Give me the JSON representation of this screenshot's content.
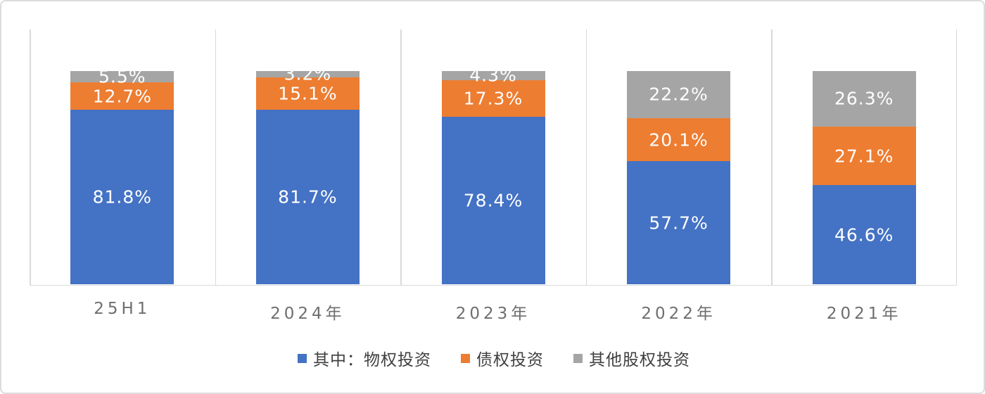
{
  "chart_data": {
    "type": "bar",
    "variant": "stacked-100-percent-column",
    "title": "",
    "xlabel": "",
    "ylabel": "",
    "categories": [
      "25H1",
      "2024年",
      "2023年",
      "2022年",
      "2021年"
    ],
    "series": [
      {
        "name": "其中：物权投资",
        "color": "#4472C4",
        "values": [
          81.8,
          81.7,
          78.4,
          57.7,
          46.6
        ],
        "labels": [
          "81.8%",
          "81.7%",
          "78.4%",
          "57.7%",
          "46.6%"
        ]
      },
      {
        "name": "债权投资",
        "color": "#ED7D31",
        "values": [
          12.7,
          15.1,
          17.3,
          20.1,
          27.1
        ],
        "labels": [
          "12.7%",
          "15.1%",
          "17.3%",
          "20.1%",
          "27.1%"
        ]
      },
      {
        "name": "其他股权投资",
        "color": "#A5A5A5",
        "values": [
          5.5,
          3.2,
          4.3,
          22.2,
          26.3
        ],
        "labels": [
          "5.5%",
          "3.2%",
          "4.3%",
          "22.2%",
          "26.3%"
        ]
      }
    ],
    "ylim": [
      0,
      120
    ],
    "grid": "vertical-category-separators",
    "legend_position": "bottom",
    "data_label_color": "#ffffff",
    "axis_label_color": "#6e6e6e",
    "legend_text_color": "#3f3f3f",
    "gridline_color": "#d9d9d9",
    "frame_border_color": "#dcdcdc"
  }
}
